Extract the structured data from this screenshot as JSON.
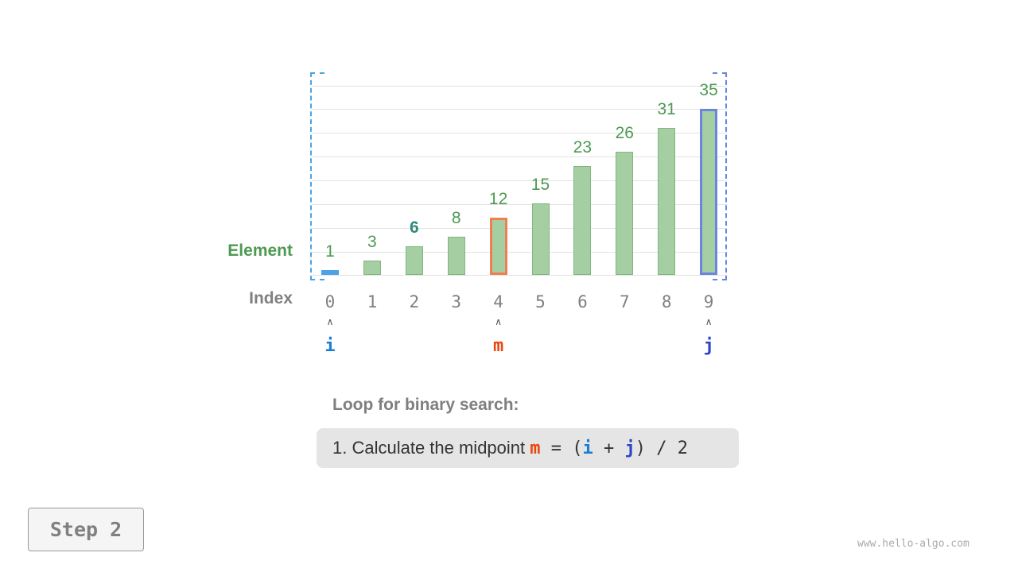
{
  "labels": {
    "element": "Element",
    "index": "Index"
  },
  "array": {
    "values": [
      1,
      3,
      6,
      8,
      12,
      15,
      23,
      26,
      31,
      35
    ],
    "indices": [
      "0",
      "1",
      "2",
      "3",
      "4",
      "5",
      "6",
      "7",
      "8",
      "9"
    ]
  },
  "pointers": {
    "i": {
      "label": "i",
      "index": 0,
      "color": "#1a7fd4"
    },
    "m": {
      "label": "m",
      "index": 4,
      "color": "#e8480f"
    },
    "j": {
      "label": "j",
      "index": 9,
      "color": "#2b46c8"
    }
  },
  "colors": {
    "bar": "#a5cea3",
    "value_text": "#4e9a52",
    "i_highlight": "#4aa3e6",
    "m_highlight": "#f07f4f",
    "j_highlight": "#6a85e0"
  },
  "caption": {
    "title": "Loop for binary search:",
    "step_prefix": "1. Calculate the midpoint",
    "formula": {
      "m": "m",
      "eq": " = (",
      "i": "i",
      "plus": " + ",
      "j": "j",
      "rest": ") / 2"
    }
  },
  "step_button": "Step 2",
  "watermark": "www.hello-algo.com"
}
